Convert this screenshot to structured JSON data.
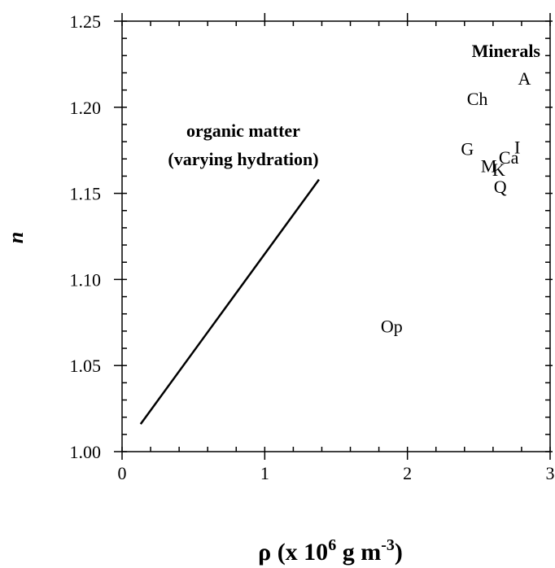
{
  "chart_data": {
    "type": "scatter",
    "title": "",
    "xlabel": {
      "base": "ρ (x 10",
      "exp1": "6",
      "mid": " g m",
      "exp2": "-3",
      "end": ")"
    },
    "ylabel": "n",
    "xlim": [
      0,
      3
    ],
    "ylim": [
      1.0,
      1.25
    ],
    "x_ticks": [
      0,
      1,
      2,
      3
    ],
    "x_tick_labels": [
      "0",
      "1",
      "2",
      "3"
    ],
    "y_ticks": [
      1.0,
      1.05,
      1.1,
      1.15,
      1.2,
      1.25
    ],
    "y_tick_labels": [
      "1.00",
      "1.05",
      "1.10",
      "1.15",
      "1.20",
      "1.25"
    ],
    "x_minor_step": 0.2,
    "y_minor_step": 0.01,
    "grid": false,
    "line_series": {
      "label_lines": [
        "organic matter",
        "(varying hydration)"
      ],
      "points": [
        [
          0.13,
          1.016
        ],
        [
          1.38,
          1.158
        ]
      ]
    },
    "minerals_heading": "Minerals",
    "labeled_points": [
      {
        "label": "A",
        "x": 2.82,
        "y": 1.217
      },
      {
        "label": "Ch",
        "x": 2.49,
        "y": 1.205
      },
      {
        "label": "G",
        "x": 2.42,
        "y": 1.176
      },
      {
        "label": "I",
        "x": 2.77,
        "y": 1.177
      },
      {
        "label": "Ca",
        "x": 2.71,
        "y": 1.171
      },
      {
        "label": "M",
        "x": 2.57,
        "y": 1.166
      },
      {
        "label": "K",
        "x": 2.64,
        "y": 1.164
      },
      {
        "label": "Q",
        "x": 2.65,
        "y": 1.154
      },
      {
        "label": "Op",
        "x": 1.89,
        "y": 1.073
      }
    ]
  }
}
